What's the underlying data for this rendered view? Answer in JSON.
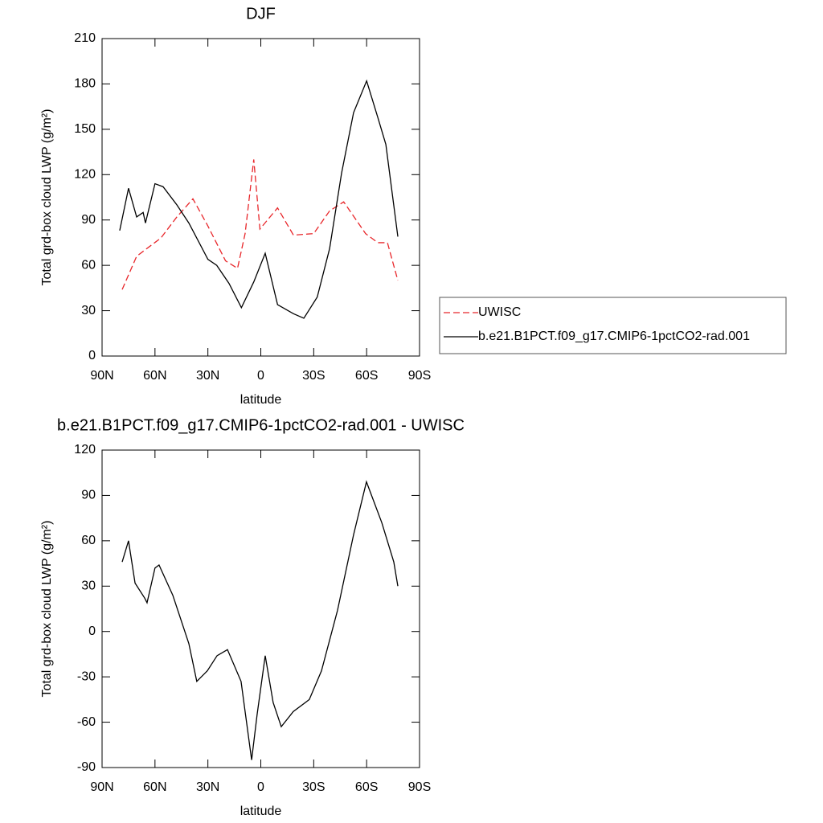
{
  "chart_data": [
    {
      "type": "line",
      "title": "DJF",
      "xlabel": "latitude",
      "ylabel": "Total grd-box cloud LWP (g/m²)",
      "xlim": [
        90,
        -90
      ],
      "xticks": [
        {
          "value": 90,
          "label": "90N"
        },
        {
          "value": 60,
          "label": "60N"
        },
        {
          "value": 30,
          "label": "30N"
        },
        0,
        {
          "value": -30,
          "label": "30S"
        },
        {
          "value": -60,
          "label": "60S"
        },
        {
          "value": -90,
          "label": "90S"
        }
      ],
      "ylim": [
        0,
        210
      ],
      "yticks": [
        0,
        30,
        60,
        90,
        120,
        150,
        180,
        210
      ],
      "legend": "right",
      "series": [
        {
          "name": "UWISC",
          "color": "#e8262a",
          "linestyle": "dashed",
          "x": [
            78.6,
            70.4,
            63.6,
            56.7,
            47.6,
            38.5,
            30,
            20,
            13.2,
            8.9,
            4,
            0.5,
            -9.5,
            -18.5,
            -30,
            -39,
            -47,
            -59.4,
            -66.3,
            -71.8,
            -77.7
          ],
          "values": [
            44,
            66,
            72,
            78,
            92,
            104,
            86,
            63,
            58,
            81,
            130,
            84,
            98,
            80,
            81,
            96,
            102,
            81,
            75,
            75,
            50
          ]
        },
        {
          "name": "b.e21.B1PCT.f09_g17.CMIP6-1pctCO2-rad.001",
          "color": "#000000",
          "linestyle": "solid",
          "x": [
            80,
            75,
            70.4,
            66.7,
            65.4,
            60,
            55.4,
            47.6,
            40.8,
            30,
            25,
            18,
            11,
            4,
            -2.5,
            -9.5,
            -18.5,
            -24.4,
            -32,
            -39,
            -45.8,
            -52.6,
            -60,
            -66.3,
            -70.9,
            -77.7
          ],
          "values": [
            83,
            111,
            92,
            95,
            88,
            114,
            112,
            100,
            88,
            64,
            60,
            48,
            32,
            49,
            68,
            34,
            28,
            25,
            39,
            71,
            121,
            161,
            182,
            158,
            140,
            79
          ]
        }
      ]
    },
    {
      "type": "line",
      "title": "b.e21.B1PCT.f09_g17.CMIP6-1pctCO2-rad.001 - UWISC",
      "xlabel": "latitude",
      "ylabel": "Total grd-box cloud LWP (g/m²)",
      "xlim": [
        90,
        -90
      ],
      "xticks": [
        {
          "value": 90,
          "label": "90N"
        },
        {
          "value": 60,
          "label": "60N"
        },
        {
          "value": 30,
          "label": "30N"
        },
        0,
        {
          "value": -30,
          "label": "30S"
        },
        {
          "value": -60,
          "label": "60S"
        },
        {
          "value": -90,
          "label": "90S"
        }
      ],
      "ylim": [
        -90,
        120
      ],
      "yticks": [
        -90,
        -60,
        -30,
        0,
        30,
        60,
        90,
        120
      ],
      "series": [
        {
          "color": "#000000",
          "linestyle": "solid",
          "x": [
            78.6,
            75,
            71.3,
            65.8,
            64.5,
            60,
            57.7,
            49.9,
            40.8,
            36.3,
            30.3,
            24.8,
            18.9,
            11.2,
            5.2,
            2.1,
            -2.5,
            -7,
            -11.6,
            -18.4,
            -27.5,
            -34.4,
            -43.5,
            -52.6,
            -59.9,
            -68.6,
            -75.4,
            -77.7
          ],
          "values": [
            46,
            60,
            32,
            22,
            19,
            42,
            44,
            24,
            -8,
            -33,
            -26,
            -16,
            -12,
            -33,
            -85,
            -55,
            -16,
            -47,
            -63,
            -53,
            -45,
            -26,
            14,
            64,
            99,
            72,
            46,
            30
          ]
        }
      ]
    }
  ]
}
